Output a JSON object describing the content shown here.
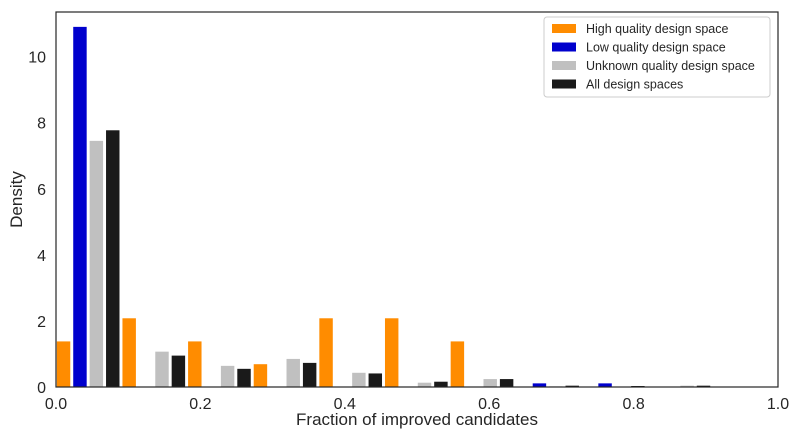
{
  "chart_data": {
    "type": "bar",
    "title": "",
    "xlabel": "Fraction of improved candidates",
    "ylabel": "Density",
    "xlim": [
      0.0,
      1.0
    ],
    "ylim": [
      0,
      11.35
    ],
    "xticks": [
      0.0,
      0.2,
      0.4,
      0.6,
      0.8,
      1.0
    ],
    "xtick_labels": [
      "0.0",
      "0.2",
      "0.4",
      "0.6",
      "0.8",
      "1.0"
    ],
    "yticks": [
      0,
      2,
      4,
      6,
      8,
      10
    ],
    "ytick_labels": [
      "0",
      "2",
      "4",
      "6",
      "8",
      "10"
    ],
    "grid": false,
    "legend_position": "top-right",
    "bin_width": 0.0909,
    "bin_starts": [
      0.0,
      0.0909,
      0.1818,
      0.2727,
      0.3636,
      0.4545,
      0.5455,
      0.6364,
      0.7273,
      0.8182,
      0.9091
    ],
    "series": [
      {
        "name": "High quality design space",
        "color": "#ff8c00",
        "values": [
          1.38,
          2.08,
          1.38,
          0.69,
          2.08,
          2.08,
          1.38,
          0,
          0,
          0,
          0
        ]
      },
      {
        "name": "Low quality design space",
        "color": "#0000cd",
        "values": [
          10.9,
          0,
          0,
          0,
          0,
          0,
          0,
          0.11,
          0.11,
          0,
          0
        ]
      },
      {
        "name": "Unknown quality design space",
        "color": "#c0c0c0",
        "values": [
          7.45,
          1.07,
          0.64,
          0.85,
          0.43,
          0.13,
          0.24,
          0.02,
          0.01,
          0.04,
          0
        ]
      },
      {
        "name": "All design spaces",
        "color": "#1a1a1a",
        "values": [
          7.77,
          0.95,
          0.55,
          0.73,
          0.41,
          0.16,
          0.24,
          0.04,
          0.03,
          0.04,
          0
        ]
      }
    ]
  }
}
